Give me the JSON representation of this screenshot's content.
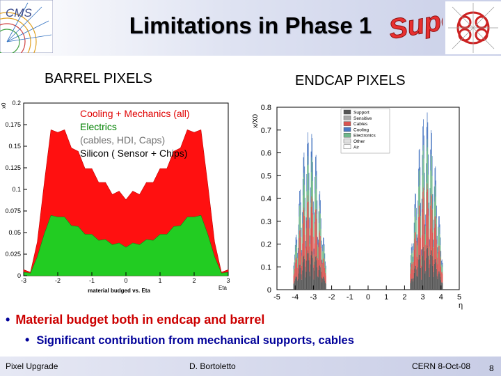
{
  "slide": {
    "title": "Limitations in Phase 1",
    "barrel_label": "BARREL PIXELS",
    "endcap_label": "ENDCAP PIXELS",
    "logos": {
      "left": "CMS",
      "super_text": "Super"
    },
    "legend": {
      "line1": "Cooling + Mechanics (all)",
      "line2": "Electrics",
      "line3": "(cables, HDI, Caps)",
      "line4": "Silicon  ( Sensor + Chips)"
    },
    "bullets": {
      "main": "Material budget both in endcap and barrel",
      "sub": "Significant contribution from mechanical supports, cables"
    },
    "footer": {
      "left": "Pixel Upgrade",
      "center": "D. Bortoletto",
      "right": "CERN 8-Oct-08",
      "page": "8"
    }
  },
  "chart_data": [
    {
      "type": "area",
      "xlabel": "material budged vs. Eta",
      "xlabel_right": "Eta",
      "ylabel": "x0",
      "xlim": [
        -3,
        3
      ],
      "ylim": [
        0,
        0.2
      ],
      "x_ticks": [
        "-3",
        "-2",
        "-1",
        "0",
        "1",
        "2",
        "3"
      ],
      "y_ticks": [
        "0",
        "0.025",
        "0.05",
        "0.075",
        "0.1",
        "0.125",
        "0.15",
        "0.175",
        "0.2"
      ],
      "x": [
        -3,
        -2.8,
        -2.6,
        -2.4,
        -2.2,
        -2.0,
        -1.8,
        -1.6,
        -1.4,
        -1.2,
        -1.0,
        -0.8,
        -0.6,
        -0.4,
        -0.2,
        0,
        0.2,
        0.4,
        0.6,
        0.8,
        1.0,
        1.2,
        1.4,
        1.6,
        1.8,
        2.0,
        2.2,
        2.4,
        2.6,
        2.8,
        3.0
      ],
      "series": [
        {
          "name": "Cooling + Mechanics (all)",
          "color": "#ff1010",
          "values": [
            0.003,
            0.008,
            0.035,
            0.11,
            0.165,
            0.17,
            0.165,
            0.152,
            0.14,
            0.128,
            0.12,
            0.112,
            0.104,
            0.098,
            0.094,
            0.092,
            0.094,
            0.098,
            0.104,
            0.112,
            0.12,
            0.128,
            0.14,
            0.152,
            0.165,
            0.17,
            0.165,
            0.11,
            0.035,
            0.008,
            0.003
          ]
        },
        {
          "name": "Silicon  ( Sensor + Chips)",
          "color": "#22cc22",
          "values": [
            0.002,
            0.005,
            0.02,
            0.05,
            0.068,
            0.07,
            0.066,
            0.06,
            0.055,
            0.05,
            0.046,
            0.043,
            0.04,
            0.038,
            0.036,
            0.035,
            0.036,
            0.038,
            0.04,
            0.043,
            0.046,
            0.05,
            0.055,
            0.06,
            0.066,
            0.07,
            0.068,
            0.05,
            0.02,
            0.005,
            0.002
          ]
        }
      ]
    },
    {
      "type": "area",
      "xlabel": "η",
      "ylabel": "x/X0",
      "xlim": [
        -5,
        5
      ],
      "ylim": [
        0,
        0.8
      ],
      "x_ticks": [
        "-5",
        "-4",
        "-3",
        "-2",
        "-1",
        "0",
        "1",
        "2",
        "3",
        "4",
        "5"
      ],
      "y_ticks": [
        "0",
        "0.1",
        "0.2",
        "0.3",
        "0.4",
        "0.5",
        "0.6",
        "0.7",
        "0.8"
      ],
      "legend_entries": [
        "Support",
        "Sensitive",
        "Cables",
        "Cooling",
        "Electronics",
        "Other",
        "Air"
      ],
      "legend_colors": [
        "#555555",
        "#aaaaaa",
        "#d9534f",
        "#4a78c2",
        "#6fb88a",
        "#e0e0e0",
        "#ffffff"
      ],
      "regions": [
        {
          "eta_range": [
            -4.1,
            -2.3
          ],
          "peak": 0.7
        },
        {
          "eta_range": [
            2.3,
            4.1
          ],
          "peak": 0.78
        }
      ]
    }
  ]
}
